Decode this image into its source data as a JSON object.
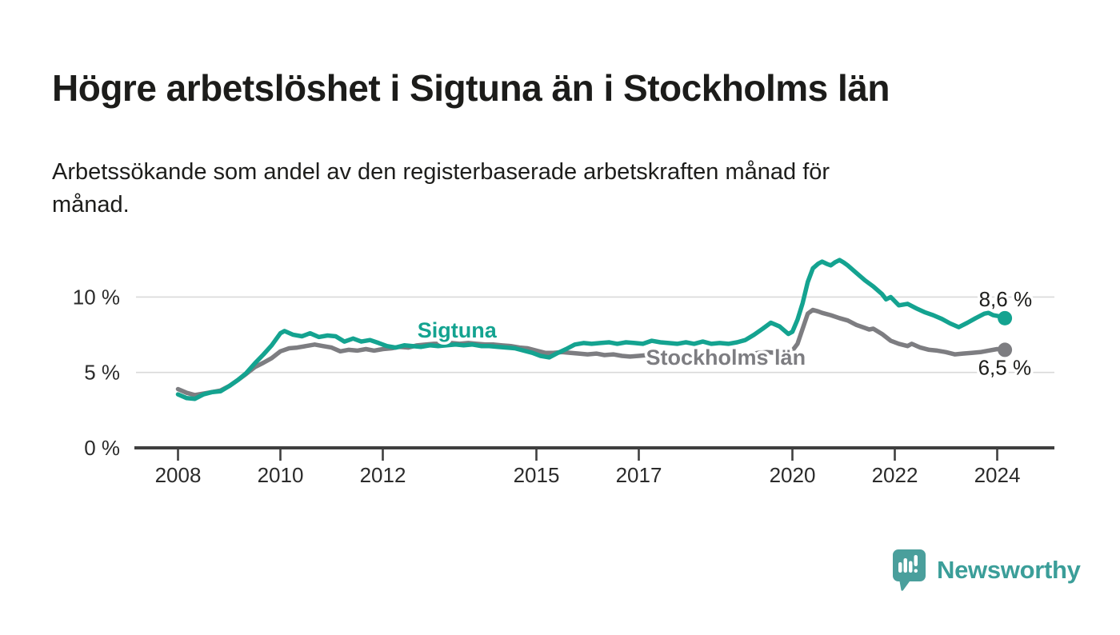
{
  "title": "Högre arbetslöshet i Sigtuna än i Stockholms län",
  "subtitle_line1": "Arbetssökande som andel av den registerbaserade arbetskraften månad för",
  "subtitle_line2": "månad.",
  "branding": {
    "name": "Newsworthy",
    "icon": "speech-bubble-bar-chart-icon",
    "color": "#3b9e99",
    "icon_color": "#4a9f9c"
  },
  "chart_data": {
    "type": "line",
    "title": "Högre arbetslöshet i Sigtuna än i Stockholms län",
    "xlabel": "",
    "ylabel": "",
    "grid": "horizontal",
    "xlim": [
      2008,
      2024.3
    ],
    "ylim": [
      0,
      13
    ],
    "x_ticks": [
      {
        "value": 2008,
        "label": "2008"
      },
      {
        "value": 2010,
        "label": "2010"
      },
      {
        "value": 2012,
        "label": "2012"
      },
      {
        "value": 2015,
        "label": "2015"
      },
      {
        "value": 2017,
        "label": "2017"
      },
      {
        "value": 2020,
        "label": "2020"
      },
      {
        "value": 2022,
        "label": "2022"
      },
      {
        "value": 2024,
        "label": "2024"
      }
    ],
    "y_ticks": [
      {
        "value": 0,
        "label": "0 %"
      },
      {
        "value": 5,
        "label": "5 %"
      },
      {
        "value": 10,
        "label": "10 %"
      }
    ],
    "colors": {
      "grid": "#d9d9d9",
      "axis": "#3f3f3f",
      "tick_label": "#2b2b2b",
      "value_label": "#1d1d1b"
    },
    "series": [
      {
        "id": "stockholms-lan",
        "name": "Stockholms län",
        "color": "#7d7d81",
        "end_label": "6,5 %",
        "end_value": 6.5,
        "label_pos": {
          "year": 2018.7,
          "value": 5.99
        },
        "points": [
          [
            2008.0,
            3.9
          ],
          [
            2008.17,
            3.65
          ],
          [
            2008.33,
            3.5
          ],
          [
            2008.5,
            3.6
          ],
          [
            2008.67,
            3.7
          ],
          [
            2008.83,
            3.8
          ],
          [
            2009.0,
            4.1
          ],
          [
            2009.17,
            4.5
          ],
          [
            2009.33,
            4.9
          ],
          [
            2009.5,
            5.35
          ],
          [
            2009.67,
            5.65
          ],
          [
            2009.83,
            5.95
          ],
          [
            2010.0,
            6.4
          ],
          [
            2010.17,
            6.6
          ],
          [
            2010.33,
            6.65
          ],
          [
            2010.5,
            6.75
          ],
          [
            2010.67,
            6.85
          ],
          [
            2010.83,
            6.75
          ],
          [
            2011.0,
            6.65
          ],
          [
            2011.17,
            6.4
          ],
          [
            2011.33,
            6.5
          ],
          [
            2011.5,
            6.45
          ],
          [
            2011.67,
            6.55
          ],
          [
            2011.83,
            6.45
          ],
          [
            2012.0,
            6.55
          ],
          [
            2012.17,
            6.6
          ],
          [
            2012.33,
            6.7
          ],
          [
            2012.5,
            6.65
          ],
          [
            2012.67,
            6.8
          ],
          [
            2012.83,
            6.85
          ],
          [
            2013.0,
            6.9
          ],
          [
            2013.17,
            6.9
          ],
          [
            2013.33,
            6.95
          ],
          [
            2013.5,
            6.9
          ],
          [
            2013.67,
            6.95
          ],
          [
            2013.83,
            6.9
          ],
          [
            2014.0,
            6.85
          ],
          [
            2014.17,
            6.85
          ],
          [
            2014.33,
            6.8
          ],
          [
            2014.5,
            6.75
          ],
          [
            2014.67,
            6.65
          ],
          [
            2014.83,
            6.6
          ],
          [
            2015.0,
            6.45
          ],
          [
            2015.17,
            6.3
          ],
          [
            2015.33,
            6.3
          ],
          [
            2015.5,
            6.35
          ],
          [
            2015.67,
            6.3
          ],
          [
            2015.83,
            6.25
          ],
          [
            2016.0,
            6.2
          ],
          [
            2016.17,
            6.25
          ],
          [
            2016.33,
            6.15
          ],
          [
            2016.5,
            6.2
          ],
          [
            2016.67,
            6.1
          ],
          [
            2016.83,
            6.05
          ],
          [
            2017.0,
            6.1
          ],
          [
            2017.17,
            6.15
          ],
          [
            2017.33,
            6.05
          ],
          [
            2017.5,
            6.1
          ],
          [
            2017.67,
            6.0
          ],
          [
            2017.83,
            6.05
          ],
          [
            2018.0,
            6.0
          ],
          [
            2018.17,
            6.1
          ],
          [
            2018.33,
            6.05
          ],
          [
            2018.5,
            6.0
          ],
          [
            2018.67,
            6.05
          ],
          [
            2018.83,
            6.1
          ],
          [
            2019.0,
            6.1
          ],
          [
            2019.17,
            6.2
          ],
          [
            2019.33,
            6.3
          ],
          [
            2019.5,
            6.35
          ],
          [
            2019.67,
            6.3
          ],
          [
            2019.83,
            6.35
          ],
          [
            2020.0,
            6.45
          ],
          [
            2020.1,
            6.9
          ],
          [
            2020.2,
            7.9
          ],
          [
            2020.3,
            8.9
          ],
          [
            2020.4,
            9.15
          ],
          [
            2020.5,
            9.05
          ],
          [
            2020.58,
            8.95
          ],
          [
            2020.75,
            8.8
          ],
          [
            2020.92,
            8.6
          ],
          [
            2021.08,
            8.45
          ],
          [
            2021.25,
            8.15
          ],
          [
            2021.42,
            7.95
          ],
          [
            2021.5,
            7.85
          ],
          [
            2021.58,
            7.9
          ],
          [
            2021.75,
            7.55
          ],
          [
            2021.92,
            7.1
          ],
          [
            2022.08,
            6.9
          ],
          [
            2022.25,
            6.75
          ],
          [
            2022.33,
            6.9
          ],
          [
            2022.5,
            6.65
          ],
          [
            2022.67,
            6.5
          ],
          [
            2022.83,
            6.45
          ],
          [
            2023.0,
            6.35
          ],
          [
            2023.17,
            6.2
          ],
          [
            2023.33,
            6.25
          ],
          [
            2023.5,
            6.3
          ],
          [
            2023.67,
            6.35
          ],
          [
            2023.83,
            6.45
          ],
          [
            2024.0,
            6.55
          ],
          [
            2024.15,
            6.5
          ]
        ]
      },
      {
        "id": "sigtuna",
        "name": "Sigtuna",
        "color": "#14a390",
        "end_label": "8,6 %",
        "end_value": 8.6,
        "label_pos": {
          "year": 2013.45,
          "value": 7.8
        },
        "points": [
          [
            2008.0,
            3.55
          ],
          [
            2008.17,
            3.3
          ],
          [
            2008.33,
            3.25
          ],
          [
            2008.5,
            3.55
          ],
          [
            2008.67,
            3.7
          ],
          [
            2008.83,
            3.75
          ],
          [
            2009.0,
            4.1
          ],
          [
            2009.17,
            4.5
          ],
          [
            2009.33,
            4.95
          ],
          [
            2009.5,
            5.6
          ],
          [
            2009.67,
            6.2
          ],
          [
            2009.83,
            6.8
          ],
          [
            2010.0,
            7.6
          ],
          [
            2010.08,
            7.75
          ],
          [
            2010.25,
            7.5
          ],
          [
            2010.42,
            7.4
          ],
          [
            2010.58,
            7.6
          ],
          [
            2010.75,
            7.35
          ],
          [
            2010.92,
            7.45
          ],
          [
            2011.08,
            7.4
          ],
          [
            2011.25,
            7.05
          ],
          [
            2011.42,
            7.25
          ],
          [
            2011.58,
            7.05
          ],
          [
            2011.75,
            7.15
          ],
          [
            2011.92,
            6.95
          ],
          [
            2012.08,
            6.75
          ],
          [
            2012.25,
            6.65
          ],
          [
            2012.42,
            6.8
          ],
          [
            2012.58,
            6.75
          ],
          [
            2012.75,
            6.7
          ],
          [
            2012.92,
            6.8
          ],
          [
            2013.08,
            6.75
          ],
          [
            2013.25,
            6.8
          ],
          [
            2013.42,
            6.85
          ],
          [
            2013.58,
            6.8
          ],
          [
            2013.75,
            6.85
          ],
          [
            2013.92,
            6.75
          ],
          [
            2014.08,
            6.75
          ],
          [
            2014.25,
            6.7
          ],
          [
            2014.42,
            6.65
          ],
          [
            2014.58,
            6.6
          ],
          [
            2014.75,
            6.45
          ],
          [
            2014.92,
            6.3
          ],
          [
            2015.08,
            6.1
          ],
          [
            2015.25,
            6.0
          ],
          [
            2015.42,
            6.3
          ],
          [
            2015.58,
            6.55
          ],
          [
            2015.75,
            6.85
          ],
          [
            2015.92,
            6.95
          ],
          [
            2016.08,
            6.9
          ],
          [
            2016.25,
            6.95
          ],
          [
            2016.42,
            7.0
          ],
          [
            2016.58,
            6.9
          ],
          [
            2016.75,
            7.0
          ],
          [
            2016.92,
            6.95
          ],
          [
            2017.08,
            6.9
          ],
          [
            2017.25,
            7.1
          ],
          [
            2017.42,
            7.0
          ],
          [
            2017.58,
            6.95
          ],
          [
            2017.75,
            6.9
          ],
          [
            2017.92,
            7.0
          ],
          [
            2018.08,
            6.9
          ],
          [
            2018.25,
            7.05
          ],
          [
            2018.42,
            6.9
          ],
          [
            2018.58,
            6.95
          ],
          [
            2018.75,
            6.9
          ],
          [
            2018.92,
            7.0
          ],
          [
            2019.08,
            7.15
          ],
          [
            2019.25,
            7.5
          ],
          [
            2019.42,
            7.9
          ],
          [
            2019.58,
            8.3
          ],
          [
            2019.75,
            8.05
          ],
          [
            2019.92,
            7.55
          ],
          [
            2020.0,
            7.7
          ],
          [
            2020.1,
            8.5
          ],
          [
            2020.2,
            9.6
          ],
          [
            2020.3,
            11.0
          ],
          [
            2020.4,
            11.9
          ],
          [
            2020.5,
            12.2
          ],
          [
            2020.58,
            12.35
          ],
          [
            2020.67,
            12.2
          ],
          [
            2020.75,
            12.1
          ],
          [
            2020.83,
            12.3
          ],
          [
            2020.92,
            12.45
          ],
          [
            2021.0,
            12.3
          ],
          [
            2021.08,
            12.1
          ],
          [
            2021.25,
            11.6
          ],
          [
            2021.42,
            11.1
          ],
          [
            2021.58,
            10.7
          ],
          [
            2021.75,
            10.2
          ],
          [
            2021.83,
            9.85
          ],
          [
            2021.92,
            10.0
          ],
          [
            2022.08,
            9.45
          ],
          [
            2022.25,
            9.55
          ],
          [
            2022.42,
            9.25
          ],
          [
            2022.58,
            9.0
          ],
          [
            2022.75,
            8.8
          ],
          [
            2022.92,
            8.55
          ],
          [
            2023.08,
            8.25
          ],
          [
            2023.25,
            8.0
          ],
          [
            2023.42,
            8.3
          ],
          [
            2023.58,
            8.6
          ],
          [
            2023.75,
            8.9
          ],
          [
            2023.83,
            8.95
          ],
          [
            2023.92,
            8.8
          ],
          [
            2024.08,
            8.7
          ],
          [
            2024.15,
            8.6
          ]
        ]
      }
    ]
  }
}
